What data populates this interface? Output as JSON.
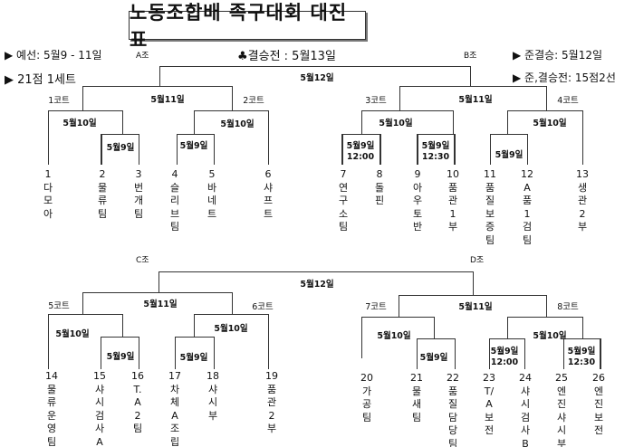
{
  "title": "노동조합배 족구대회 대진표",
  "info": {
    "prelim": "▶ 예선: 5월9 - 11일",
    "sets": "▶ 21점 1세트",
    "final": "♣결승전 : 5월13일",
    "semifinal": "▶ 준결승: 5월12일",
    "semi_final_rule": "▶ 준,결승전: 15점2선"
  },
  "top_final_date": "5월12일",
  "bottom_final_date": "5월12일",
  "groups": {
    "A": {
      "label": "A조",
      "courts": [
        "1코트",
        "2코트"
      ],
      "round3": "5월11일",
      "round2": [
        "5월10일",
        "5월10일"
      ],
      "round1": [
        "5월9일",
        "5월9일"
      ],
      "teams": [
        {
          "num": "1",
          "name": "다모아"
        },
        {
          "num": "2",
          "name": "물류팀"
        },
        {
          "num": "3",
          "name": "번개팀"
        },
        {
          "num": "4",
          "name": "슬리브팀"
        },
        {
          "num": "5",
          "name": "바네트"
        },
        {
          "num": "6",
          "name": "샤프트"
        }
      ]
    },
    "B": {
      "label": "B조",
      "courts": [
        "3코트",
        "4코트"
      ],
      "round3": "5월11일",
      "round2": [
        "5월10일",
        "5월10일"
      ],
      "round1": [
        "5월9일\n12:00",
        "5월9일\n12:30",
        "5월9일"
      ],
      "teams": [
        {
          "num": "7",
          "name": "연구소팀"
        },
        {
          "num": "8",
          "name": "돌핀"
        },
        {
          "num": "9",
          "name": "아우토반"
        },
        {
          "num": "10",
          "name": "품관1부"
        },
        {
          "num": "11",
          "name": "품질보증팀"
        },
        {
          "num": "12",
          "name": "A품1검팀"
        },
        {
          "num": "13",
          "name": "생관2부"
        }
      ]
    },
    "C": {
      "label": "C조",
      "courts": [
        "5코트",
        "6코트"
      ],
      "round3": "5월11일",
      "round2": [
        "5월10일",
        "5월10일"
      ],
      "round1": [
        "5월9일",
        "5월9일"
      ],
      "teams": [
        {
          "num": "14",
          "name": "물류운영팀"
        },
        {
          "num": "15",
          "name": "샤시검사A"
        },
        {
          "num": "16",
          "name": "T.A2팀"
        },
        {
          "num": "17",
          "name": "차체A조립"
        },
        {
          "num": "18",
          "name": "샤시부"
        },
        {
          "num": "19",
          "name": "품관2부"
        }
      ]
    },
    "D": {
      "label": "D조",
      "courts": [
        "7코트",
        "8코트"
      ],
      "round3": "5월11일",
      "round2": [
        "5월10일",
        "5월10일"
      ],
      "round1": [
        "5월9일",
        "5월9일\n12:00",
        "5월9일\n12:30"
      ],
      "teams": [
        {
          "num": "20",
          "name": "가공팀"
        },
        {
          "num": "21",
          "name": "물새팀"
        },
        {
          "num": "22",
          "name": "품질담당팀"
        },
        {
          "num": "23",
          "name": "T/A보전"
        },
        {
          "num": "24",
          "name": "샤시검사B"
        },
        {
          "num": "25",
          "name": "엔진샤시부"
        },
        {
          "num": "26",
          "name": "엔진보전"
        }
      ]
    }
  }
}
